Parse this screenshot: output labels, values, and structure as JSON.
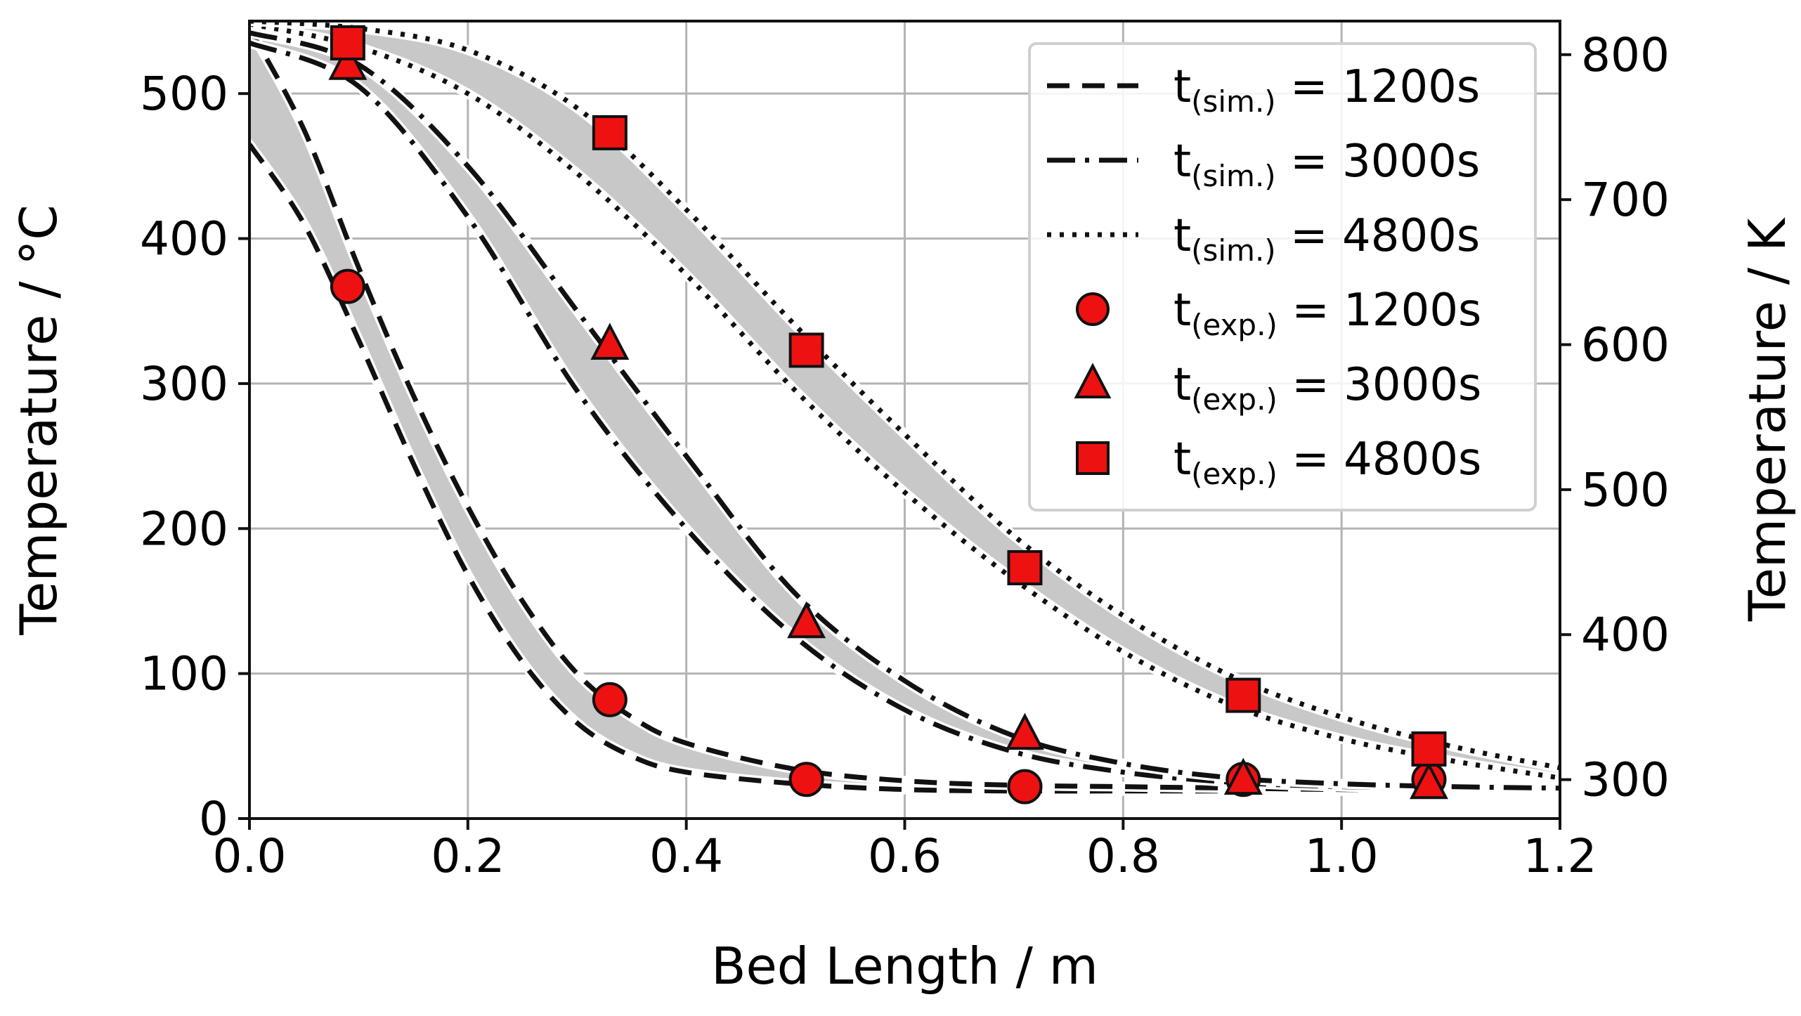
{
  "chart_data": {
    "type": "line",
    "xlabel": "Bed Length / m",
    "ylabel": "Temperature / °C",
    "y2label": "Temperature / K",
    "xlim": [
      0,
      1.2
    ],
    "ylim": [
      0,
      550
    ],
    "y2lim": [
      273.15,
      823.15
    ],
    "xticks": [
      0.0,
      0.2,
      0.4,
      0.6,
      0.8,
      1.0,
      1.2
    ],
    "xtick_labels": [
      "0.0",
      "0.2",
      "0.4",
      "0.6",
      "0.8",
      "1.0",
      "1.2"
    ],
    "yticks": [
      0,
      100,
      200,
      300,
      400,
      500
    ],
    "ytick_labels": [
      "0",
      "100",
      "200",
      "300",
      "400",
      "500"
    ],
    "y2ticks": [
      300,
      400,
      500,
      600,
      700,
      800
    ],
    "y2tick_labels": [
      "300",
      "400",
      "500",
      "600",
      "700",
      "800"
    ],
    "grid": true,
    "legend_position": "top-right",
    "band_color": "#c8c8c8",
    "marker_color": "#ee1111",
    "bands": [
      {
        "name": "t(sim.) = 1200s",
        "style": "dashed",
        "lower": {
          "x": [
            0,
            0.05,
            0.1,
            0.15,
            0.2,
            0.25,
            0.3,
            0.35,
            0.4,
            0.5,
            0.6,
            0.7,
            0.8,
            0.9,
            1.0,
            1.1,
            1.2
          ],
          "y": [
            465,
            410,
            330,
            245,
            168,
            108,
            66,
            43,
            32,
            24,
            20,
            19,
            19,
            19,
            19,
            19,
            19
          ]
        },
        "upper": {
          "x": [
            0,
            0.05,
            0.1,
            0.15,
            0.2,
            0.25,
            0.3,
            0.35,
            0.4,
            0.5,
            0.6,
            0.7,
            0.8,
            0.9,
            1.0,
            1.1,
            1.2
          ],
          "y": [
            545,
            475,
            380,
            292,
            215,
            150,
            100,
            70,
            52,
            34,
            26,
            23,
            22,
            21,
            20,
            20,
            20
          ]
        }
      },
      {
        "name": "t(sim.) = 3000s",
        "style": "dashdot",
        "lower": {
          "x": [
            0,
            0.1,
            0.2,
            0.3,
            0.4,
            0.5,
            0.6,
            0.7,
            0.8,
            0.9,
            1.0,
            1.1,
            1.2
          ],
          "y": [
            535,
            505,
            415,
            295,
            200,
            125,
            75,
            46,
            32,
            25,
            22,
            21,
            20
          ]
        },
        "upper": {
          "x": [
            0,
            0.1,
            0.2,
            0.3,
            0.4,
            0.5,
            0.6,
            0.7,
            0.8,
            0.9,
            1.0,
            1.1,
            1.2
          ],
          "y": [
            542,
            520,
            450,
            350,
            250,
            155,
            95,
            57,
            38,
            28,
            24,
            22,
            21
          ]
        }
      },
      {
        "name": "t(sim.) = 4800s",
        "style": "dotted",
        "lower": {
          "x": [
            0,
            0.1,
            0.2,
            0.3,
            0.4,
            0.5,
            0.6,
            0.7,
            0.8,
            0.9,
            1.0,
            1.1,
            1.2
          ],
          "y": [
            548,
            532,
            500,
            445,
            375,
            295,
            225,
            165,
            115,
            78,
            55,
            40,
            28
          ]
        },
        "upper": {
          "x": [
            0,
            0.1,
            0.2,
            0.3,
            0.4,
            0.5,
            0.6,
            0.7,
            0.8,
            0.9,
            1.0,
            1.1,
            1.2
          ],
          "y": [
            550,
            545,
            530,
            490,
            420,
            340,
            265,
            195,
            140,
            98,
            70,
            50,
            35
          ]
        }
      }
    ],
    "markers": [
      {
        "name": "t(exp.) = 1200s",
        "symbol": "circle",
        "x": [
          0.09,
          0.33,
          0.51,
          0.71,
          0.91,
          1.08
        ],
        "y": [
          367,
          82,
          27,
          22,
          27,
          27
        ]
      },
      {
        "name": "t(exp.) = 3000s",
        "symbol": "triangle",
        "x": [
          0.09,
          0.33,
          0.51,
          0.71,
          0.91,
          1.08
        ],
        "y": [
          520,
          327,
          135,
          58,
          27,
          24
        ]
      },
      {
        "name": "t(exp.) = 4800s",
        "symbol": "square",
        "x": [
          0.09,
          0.33,
          0.51,
          0.71,
          0.91,
          1.08
        ],
        "y": [
          535,
          473,
          323,
          173,
          85,
          48
        ]
      }
    ],
    "legend": [
      {
        "kind": "line",
        "style": "dashed",
        "base": "t",
        "sub": "(sim.)",
        "rest": " = 1200s"
      },
      {
        "kind": "line",
        "style": "dashdot",
        "base": "t",
        "sub": "(sim.)",
        "rest": " = 3000s"
      },
      {
        "kind": "line",
        "style": "dotted",
        "base": "t",
        "sub": "(sim.)",
        "rest": " = 4800s"
      },
      {
        "kind": "marker",
        "symbol": "circle",
        "base": "t",
        "sub": "(exp.)",
        "rest": " = 1200s"
      },
      {
        "kind": "marker",
        "symbol": "triangle",
        "base": "t",
        "sub": "(exp.)",
        "rest": " = 3000s"
      },
      {
        "kind": "marker",
        "symbol": "square",
        "base": "t",
        "sub": "(exp.)",
        "rest": " = 4800s"
      }
    ]
  }
}
